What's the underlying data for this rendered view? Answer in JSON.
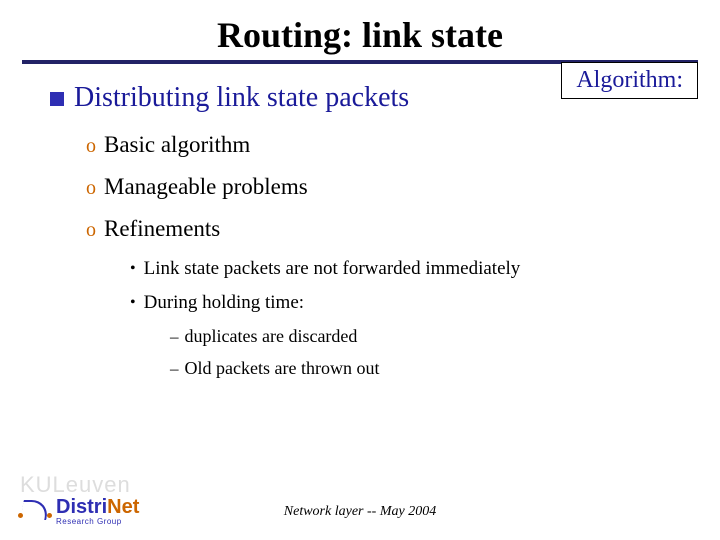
{
  "title": "Routing:  link state",
  "badge": "Algorithm:",
  "colors": {
    "rule": "#222266",
    "heading_text": "#1a1a99",
    "square_bullet": "#2e2eb3",
    "circle_bullet": "#cc6600",
    "body_text": "#000000",
    "background": "#ffffff",
    "watermark": "#dddddd"
  },
  "fonts": {
    "title_pt": 36,
    "lvl1_pt": 28,
    "lvl2_pt": 23,
    "lvl3_pt": 19,
    "lvl4_pt": 18,
    "footer_pt": 14
  },
  "lvl1": {
    "text": "Distributing link state packets"
  },
  "lvl2": [
    {
      "text": "Basic algorithm"
    },
    {
      "text": "Manageable problems"
    },
    {
      "text": "Refinements"
    }
  ],
  "lvl3": [
    {
      "text": "Link state packets are not forwarded immediately"
    },
    {
      "text": "During holding time:"
    }
  ],
  "lvl4": [
    {
      "text": "duplicates are discarded"
    },
    {
      "text": "Old packets are thrown out"
    }
  ],
  "footer": "Network layer  --  May 2004",
  "logo": {
    "watermark": "KULeuven",
    "main_a": "Distri",
    "main_b": "Net",
    "sub": "Research Group"
  }
}
